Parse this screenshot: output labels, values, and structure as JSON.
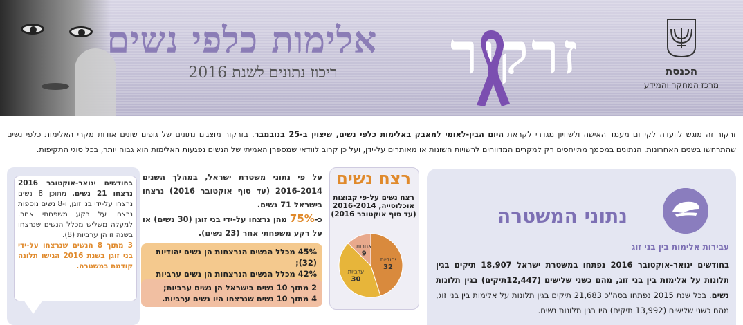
{
  "header": {
    "main_title": "אלימות כלפי נשים",
    "subtitle": "ריכוז נתונים לשנת 2016",
    "zarkor_label": "זרקור",
    "org_name": "הכנסת",
    "org_department": "מרכז המחקר והמידע",
    "ribbon_color": "#7b4fb0",
    "title_color": "#8b7db6"
  },
  "intro": {
    "p1_start": "זרקור זה מוגש לוועדה לקידום מעמד האישה ולשוויון מגדרי לקראת ",
    "p1_bold": "היום הבין-לאומי למאבק באלימות כלפי נשים, שיצוין ב-25 בנובמבר",
    "p1_end": ". בזרקור מוצגים נתונים של גופים שונים אודות מקרי האלימות כלפי נשים שהתרחשו בשנים האחרונות. הנתונים במסמך מתייחסים רק למקרים המדווחים לרשויות השונות או מאותרים על-ידן, ועל כן קרוב לוודאי שמספרן האמיתי של הנשים נפגעות האלימות הוא גבוה יותר, בכל סוגי התקיפות."
  },
  "police": {
    "icon": "police-cap-icon",
    "title": "נתוני המשטרה",
    "subtitle": "עבירות אלימות בין בני זוג",
    "text_bold": "בחודשים ינואר-אוקטובר 2016 נפתחו במשטרת ישראל 18,907 תיקים בגין תלונות על אלימות בין בני זוג, מהם כשני שלישים (12,447תיקים) בגין תלונות נשים",
    "text_rest": ". בכל שנת 2015 נפתחו בסה\"כ 21,683 תיקים בגין תלונות על אלימות בין בני זוג, מהם כשני שלישים (13,992 תיקים) היו בגין תלונות נשים."
  },
  "murder": {
    "title": "רצח נשים",
    "pie_caption": "רצח נשים על-פי קבוצות אוכלוסייה, 2016-2014 (עד סוף אוקטובר 2016)",
    "body_1": "על פי נתוני משטרת ישראל, במהלך השנים 2016-2014 (עד סוף אוקטובר 2016) נרצחו בישראל 71 נשים.",
    "body_2_prefix": "כ-",
    "body_2_pct": "75%",
    "body_2_rest": " מהן נרצחו על-ידי בני זוגן (30 נשים) או על רקע משפחתי אחר (23 נשים).",
    "box1_line1": "45% מכלל הנשים הנרצחות הן נשים יהודיות (32);",
    "box1_line2": "42% מכלל הנשים הנרצחות הן נשים ערביות (30).",
    "box2_line1": "2 מתוך 10 נשים בישראל הן נשים ערביות;",
    "box2_line2": "4 מתוך 10 נשים שנרצחו היו נשים ערביות."
  },
  "bubble": {
    "text_1_bold": "בחודשים ינואר-אוקטובר 2016 נרצחו 21 נשים",
    "text_2": ", מתוכן 8 נשים נרצחו על-ידי בני זוגן, ו-8 נשים נוספות נרצחו על רקע משפחתי אחר. למעלה משליש מכלל הנשים שנרצחו בשנה זו הן ערביות (8).",
    "text_3_orange": "3 מתוך 8 הנשים שנרצחו על-ידי בני זוגן בשנת 2016 הגישו תלונה קודמת במשטרה."
  },
  "chart_data": {
    "type": "pie",
    "title": "רצח נשים על-פי קבוצות אוכלוסייה, 2016-2014 (עד סוף אוקטובר 2016)",
    "slices": [
      {
        "label": "יהודיות",
        "value": 32,
        "color": "#d98a3d"
      },
      {
        "label": "ערביות",
        "value": 30,
        "color": "#e7b53a"
      },
      {
        "label": "אחרות",
        "value": 9,
        "color": "#e8a98c"
      }
    ]
  }
}
